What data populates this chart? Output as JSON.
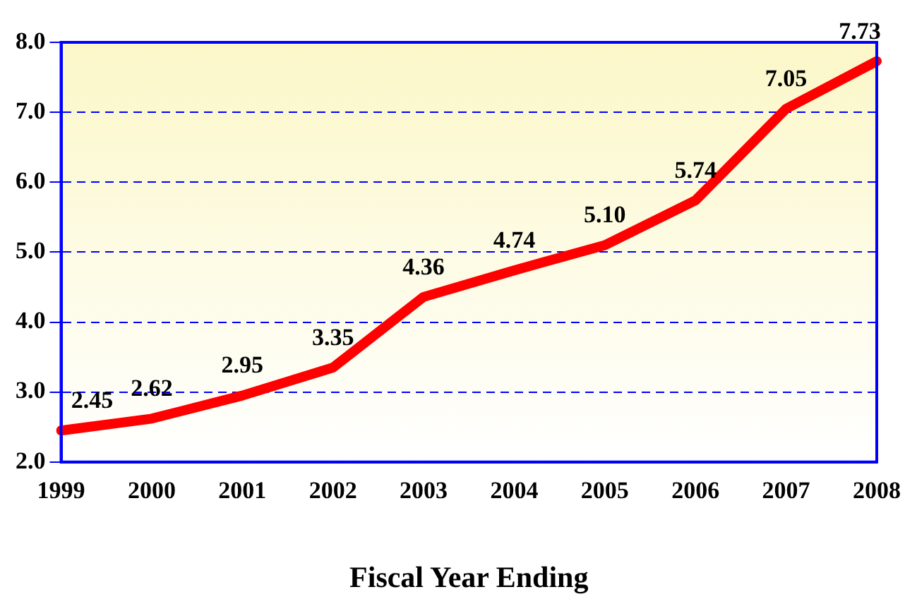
{
  "chart_data": {
    "type": "line",
    "xlabel": "Fiscal Year Ending",
    "categories": [
      "1999",
      "2000",
      "2001",
      "2002",
      "2003",
      "2004",
      "2005",
      "2006",
      "2007",
      "2008"
    ],
    "series": [
      {
        "color": "#ff0000",
        "values": [
          2.45,
          2.62,
          2.95,
          3.35,
          4.36,
          4.74,
          5.1,
          5.74,
          7.05,
          7.73
        ],
        "value_labels": [
          "2.45",
          "2.62",
          "2.95",
          "3.35",
          "4.36",
          "4.74",
          "5.10",
          "5.74",
          "7.05",
          "7.73"
        ]
      }
    ],
    "ylim": [
      2,
      8
    ],
    "yticks": [
      {
        "value": 2,
        "label": "2.0"
      },
      {
        "value": 3,
        "label": "3.0"
      },
      {
        "value": 4,
        "label": "4.0"
      },
      {
        "value": 5,
        "label": "5.0"
      },
      {
        "value": 6,
        "label": "6.0"
      },
      {
        "value": 7,
        "label": "7.0"
      },
      {
        "value": 8,
        "label": "8.0"
      }
    ],
    "grid": "y",
    "legend": false,
    "marker": "none",
    "line_style": "solid"
  }
}
